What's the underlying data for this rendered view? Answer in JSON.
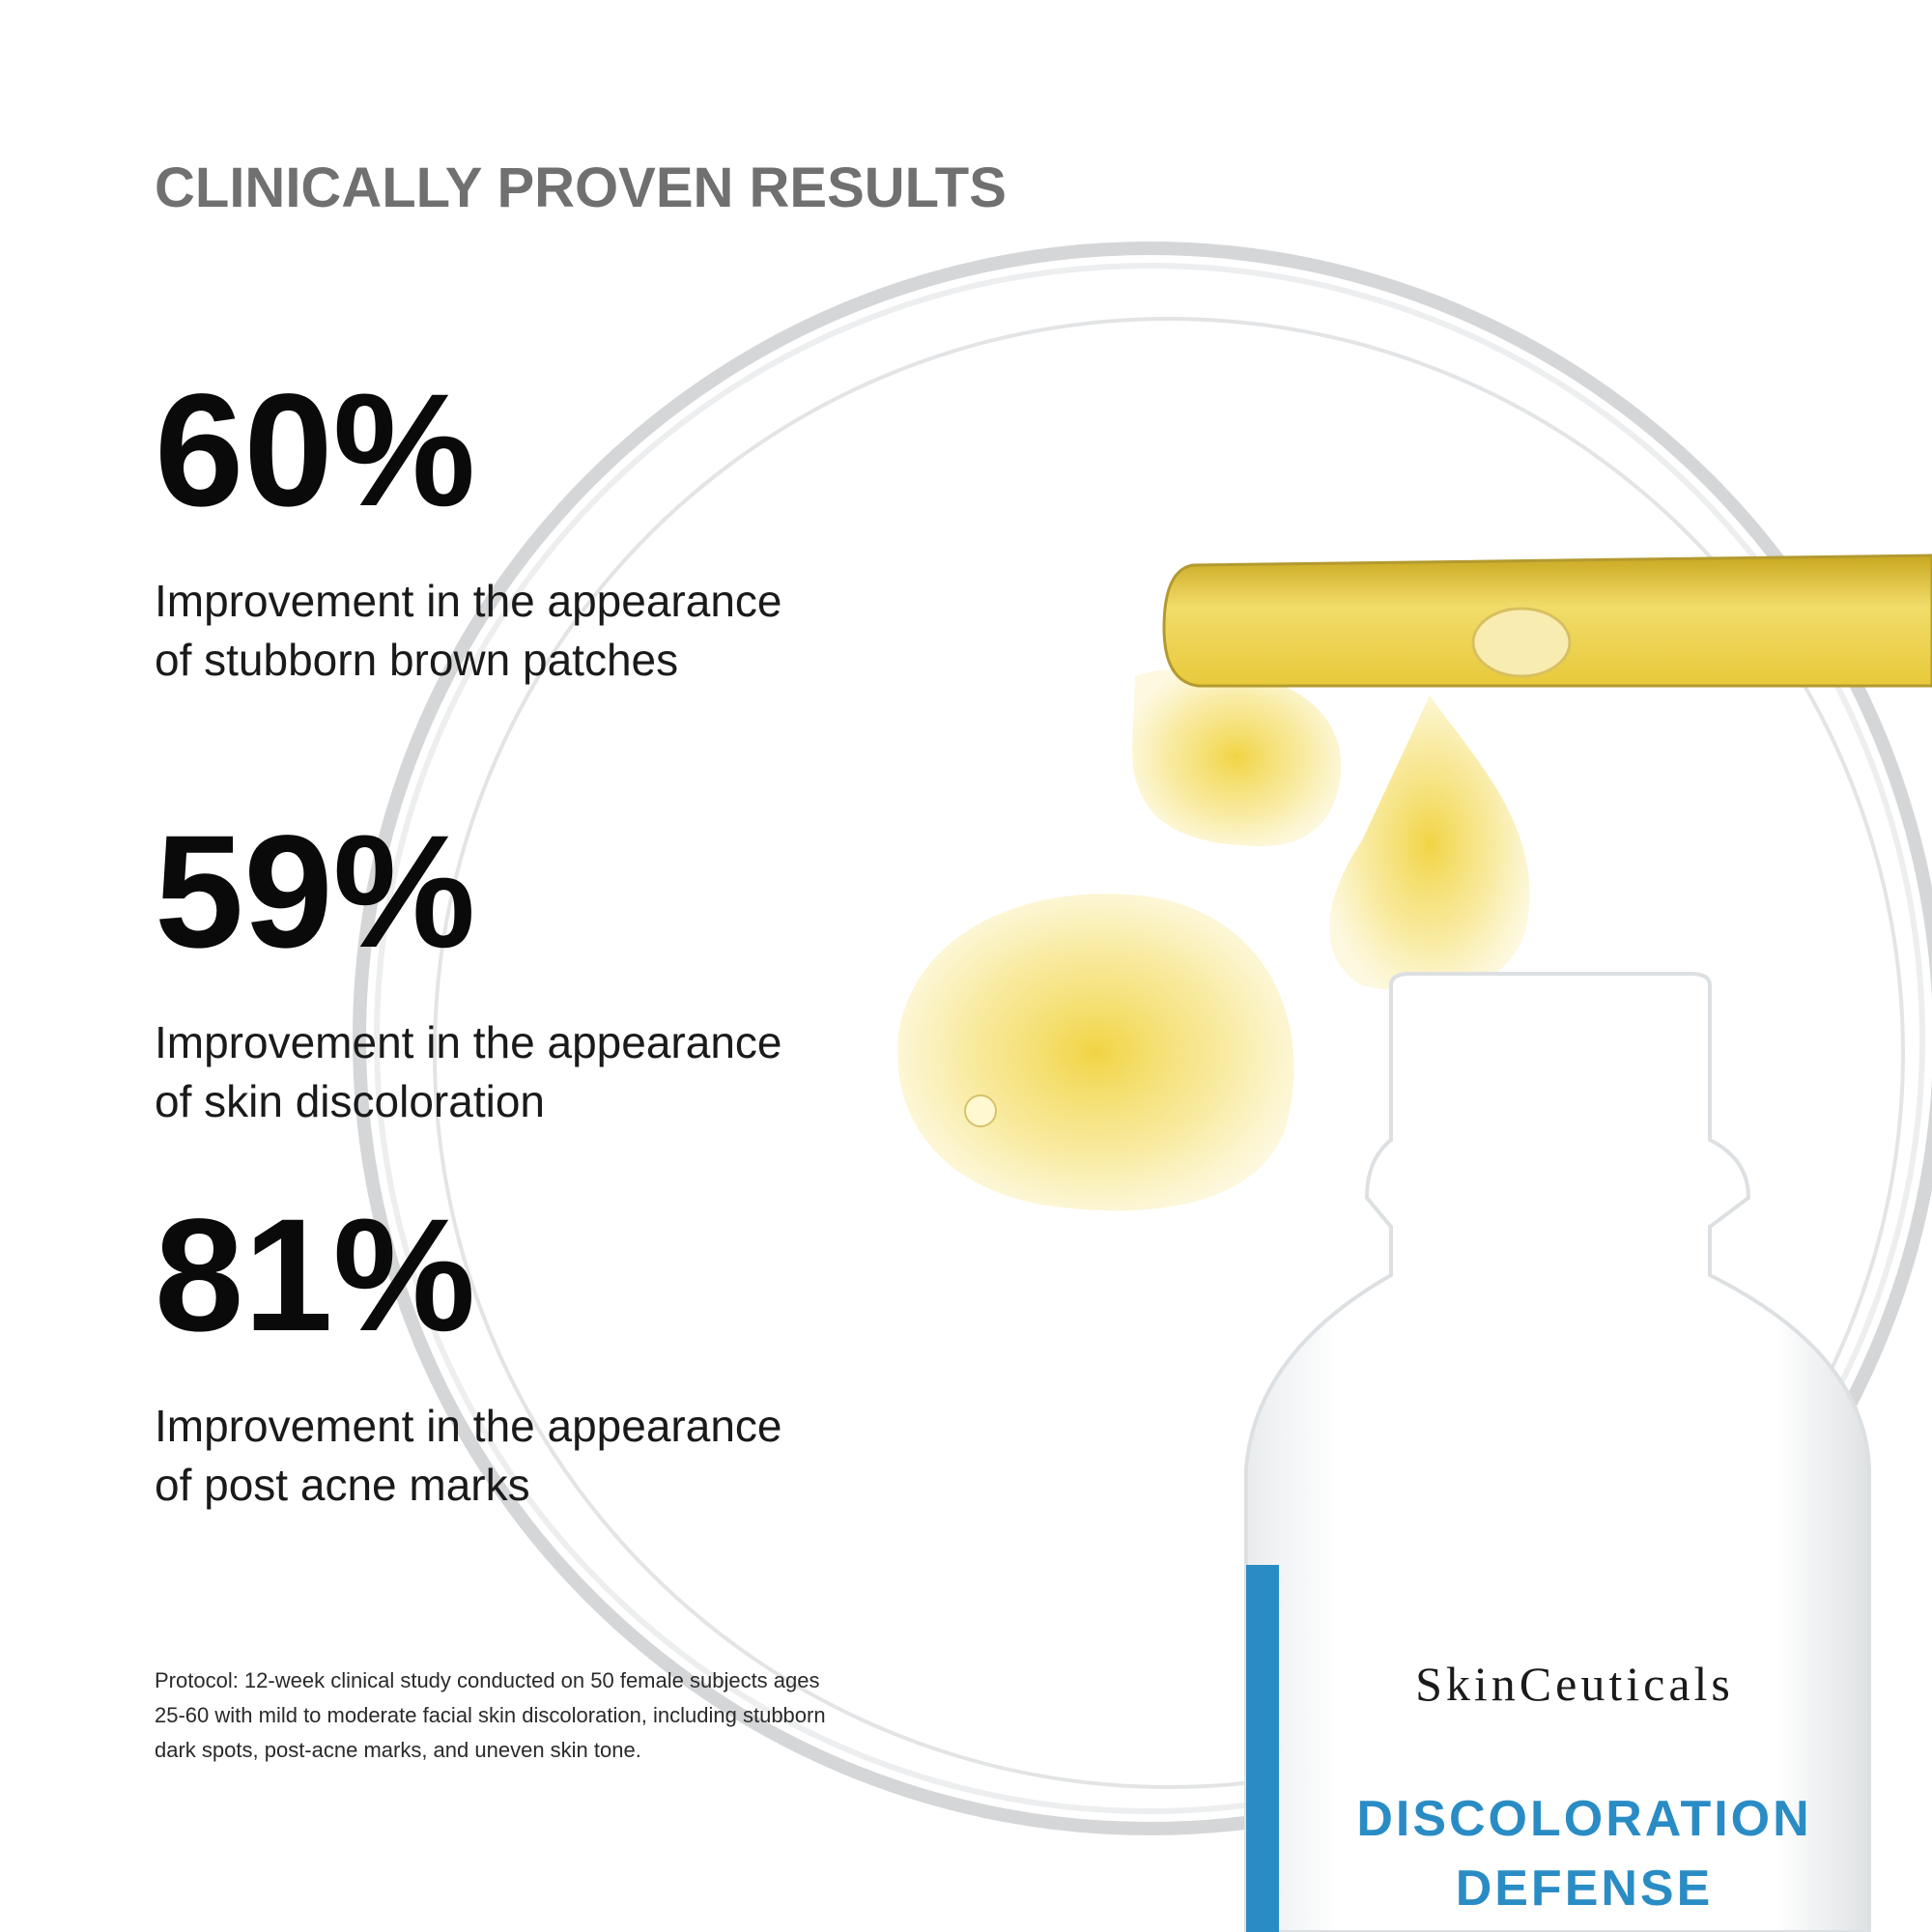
{
  "header": {
    "title": "CLINICALLY PROVEN RESULTS"
  },
  "stats": [
    {
      "value": "60%",
      "description": [
        "Improvement in the appearance",
        "of stubborn brown patches"
      ]
    },
    {
      "value": "59%",
      "description": [
        "Improvement in the appearance",
        "of skin discoloration"
      ]
    },
    {
      "value": "81%",
      "description": [
        "Improvement in the appearance",
        "of post acne marks"
      ]
    }
  ],
  "protocol": [
    "Protocol: 12-week clinical study conducted on 50 female subjects ages",
    "25-60 with mild to moderate facial skin discoloration, including stubborn",
    "dark spots, post-acne marks, and uneven skin tone."
  ],
  "product": {
    "brand": "SkinCeuticals",
    "name": [
      "DISCOLORATION",
      "DEFENSE"
    ]
  }
}
